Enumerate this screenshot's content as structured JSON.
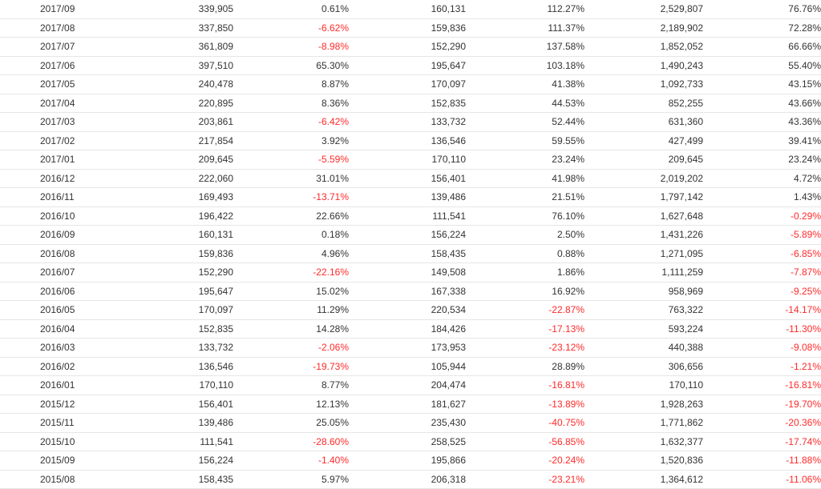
{
  "colors": {
    "text": "#333333",
    "negative": "#ff2a2a",
    "row_border": "#e6e6e6"
  },
  "rows": [
    [
      "2017/09",
      "339,905",
      "0.61%",
      "160,131",
      "112.27%",
      "2,529,807",
      "76.76%"
    ],
    [
      "2017/08",
      "337,850",
      "-6.62%",
      "159,836",
      "111.37%",
      "2,189,902",
      "72.28%"
    ],
    [
      "2017/07",
      "361,809",
      "-8.98%",
      "152,290",
      "137.58%",
      "1,852,052",
      "66.66%"
    ],
    [
      "2017/06",
      "397,510",
      "65.30%",
      "195,647",
      "103.18%",
      "1,490,243",
      "55.40%"
    ],
    [
      "2017/05",
      "240,478",
      "8.87%",
      "170,097",
      "41.38%",
      "1,092,733",
      "43.15%"
    ],
    [
      "2017/04",
      "220,895",
      "8.36%",
      "152,835",
      "44.53%",
      "852,255",
      "43.66%"
    ],
    [
      "2017/03",
      "203,861",
      "-6.42%",
      "133,732",
      "52.44%",
      "631,360",
      "43.36%"
    ],
    [
      "2017/02",
      "217,854",
      "3.92%",
      "136,546",
      "59.55%",
      "427,499",
      "39.41%"
    ],
    [
      "2017/01",
      "209,645",
      "-5.59%",
      "170,110",
      "23.24%",
      "209,645",
      "23.24%"
    ],
    [
      "2016/12",
      "222,060",
      "31.01%",
      "156,401",
      "41.98%",
      "2,019,202",
      "4.72%"
    ],
    [
      "2016/11",
      "169,493",
      "-13.71%",
      "139,486",
      "21.51%",
      "1,797,142",
      "1.43%"
    ],
    [
      "2016/10",
      "196,422",
      "22.66%",
      "111,541",
      "76.10%",
      "1,627,648",
      "-0.29%"
    ],
    [
      "2016/09",
      "160,131",
      "0.18%",
      "156,224",
      "2.50%",
      "1,431,226",
      "-5.89%"
    ],
    [
      "2016/08",
      "159,836",
      "4.96%",
      "158,435",
      "0.88%",
      "1,271,095",
      "-6.85%"
    ],
    [
      "2016/07",
      "152,290",
      "-22.16%",
      "149,508",
      "1.86%",
      "1,111,259",
      "-7.87%"
    ],
    [
      "2016/06",
      "195,647",
      "15.02%",
      "167,338",
      "16.92%",
      "958,969",
      "-9.25%"
    ],
    [
      "2016/05",
      "170,097",
      "11.29%",
      "220,534",
      "-22.87%",
      "763,322",
      "-14.17%"
    ],
    [
      "2016/04",
      "152,835",
      "14.28%",
      "184,426",
      "-17.13%",
      "593,224",
      "-11.30%"
    ],
    [
      "2016/03",
      "133,732",
      "-2.06%",
      "173,953",
      "-23.12%",
      "440,388",
      "-9.08%"
    ],
    [
      "2016/02",
      "136,546",
      "-19.73%",
      "105,944",
      "28.89%",
      "306,656",
      "-1.21%"
    ],
    [
      "2016/01",
      "170,110",
      "8.77%",
      "204,474",
      "-16.81%",
      "170,110",
      "-16.81%"
    ],
    [
      "2015/12",
      "156,401",
      "12.13%",
      "181,627",
      "-13.89%",
      "1,928,263",
      "-19.70%"
    ],
    [
      "2015/11",
      "139,486",
      "25.05%",
      "235,430",
      "-40.75%",
      "1,771,862",
      "-20.36%"
    ],
    [
      "2015/10",
      "111,541",
      "-28.60%",
      "258,525",
      "-56.85%",
      "1,632,377",
      "-17.74%"
    ],
    [
      "2015/09",
      "156,224",
      "-1.40%",
      "195,866",
      "-20.24%",
      "1,520,836",
      "-11.88%"
    ],
    [
      "2015/08",
      "158,435",
      "5.97%",
      "206,318",
      "-23.21%",
      "1,364,612",
      "-11.06%"
    ]
  ]
}
